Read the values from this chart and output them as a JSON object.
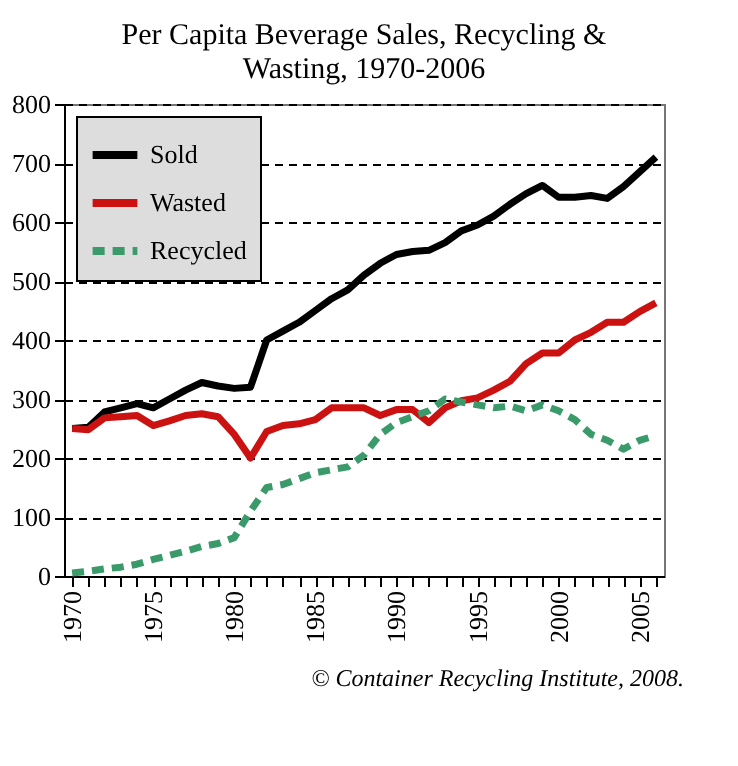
{
  "chart_data": {
    "type": "line",
    "title": [
      "Per Capita Beverage Sales, Recycling &",
      "Wasting, 1970-2006"
    ],
    "x": [
      1970,
      1971,
      1972,
      1973,
      1974,
      1975,
      1976,
      1977,
      1978,
      1979,
      1980,
      1981,
      1982,
      1983,
      1984,
      1985,
      1986,
      1987,
      1988,
      1989,
      1990,
      1991,
      1992,
      1993,
      1994,
      1995,
      1996,
      1997,
      1998,
      1999,
      2000,
      2001,
      2002,
      2003,
      2004,
      2005,
      2006
    ],
    "series": [
      {
        "name": "Sold",
        "color": "#000000",
        "line_style": "solid",
        "values": [
          250,
          252,
          278,
          285,
          292,
          285,
          300,
          315,
          328,
          322,
          318,
          320,
          400,
          415,
          430,
          450,
          470,
          485,
          510,
          530,
          545,
          550,
          552,
          565,
          585,
          595,
          610,
          630,
          648,
          662,
          642,
          642,
          645,
          640,
          660,
          685,
          710
        ]
      },
      {
        "name": "Wasted",
        "color": "#cc1111",
        "line_style": "solid",
        "values": [
          250,
          248,
          268,
          270,
          272,
          255,
          263,
          272,
          275,
          270,
          240,
          200,
          245,
          255,
          258,
          265,
          285,
          285,
          285,
          272,
          282,
          282,
          260,
          285,
          297,
          302,
          315,
          330,
          360,
          378,
          378,
          400,
          413,
          430,
          430,
          448,
          463
        ]
      },
      {
        "name": "Recycled",
        "color": "#3a9a6a",
        "line_style": "dashed",
        "values": [
          5,
          8,
          12,
          15,
          20,
          28,
          35,
          42,
          50,
          55,
          65,
          110,
          150,
          155,
          165,
          175,
          180,
          185,
          205,
          240,
          260,
          270,
          280,
          300,
          295,
          290,
          285,
          288,
          280,
          290,
          280,
          265,
          240,
          230,
          215,
          230,
          238
        ]
      }
    ],
    "xlim": [
      1969.5,
      2006.5
    ],
    "xticks": [
      1970,
      {
        "value": 1971,
        "label": null
      },
      {
        "value": 1972,
        "label": null
      },
      {
        "value": 1973,
        "label": null
      },
      {
        "value": 1974,
        "label": null
      },
      1975,
      {
        "value": 1976,
        "label": null
      },
      {
        "value": 1977,
        "label": null
      },
      {
        "value": 1978,
        "label": null
      },
      {
        "value": 1979,
        "label": null
      },
      1980,
      {
        "value": 1981,
        "label": null
      },
      {
        "value": 1982,
        "label": null
      },
      {
        "value": 1983,
        "label": null
      },
      {
        "value": 1984,
        "label": null
      },
      1985,
      {
        "value": 1986,
        "label": null
      },
      {
        "value": 1987,
        "label": null
      },
      {
        "value": 1988,
        "label": null
      },
      {
        "value": 1989,
        "label": null
      },
      1990,
      {
        "value": 1991,
        "label": null
      },
      {
        "value": 1992,
        "label": null
      },
      {
        "value": 1993,
        "label": null
      },
      {
        "value": 1994,
        "label": null
      },
      1995,
      {
        "value": 1996,
        "label": null
      },
      {
        "value": 1997,
        "label": null
      },
      {
        "value": 1998,
        "label": null
      },
      {
        "value": 1999,
        "label": null
      },
      2000,
      {
        "value": 2001,
        "label": null
      },
      {
        "value": 2002,
        "label": null
      },
      {
        "value": 2003,
        "label": null
      },
      {
        "value": 2004,
        "label": null
      },
      2005,
      {
        "value": 2006,
        "label": null
      }
    ],
    "ylim": [
      0,
      800
    ],
    "yticks": [
      0,
      100,
      200,
      300,
      400,
      500,
      600,
      700,
      800
    ],
    "grid": "y",
    "legend": "top left",
    "annotations": [
      "© Container Recycling Institute, 2008."
    ]
  }
}
